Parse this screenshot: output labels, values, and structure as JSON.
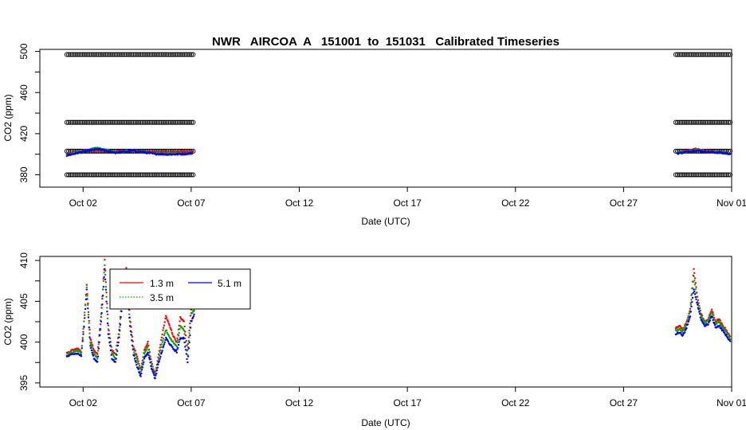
{
  "chart_data": [
    {
      "type": "scatter",
      "title": "NWR   AIRCOA  A   151001  to  151031   Calibrated Timeseries",
      "xlabel": "Date (UTC)",
      "ylabel": "CO2 (ppm)",
      "xlim": [
        "2015-09-30T00:00",
        "2015-11-01T00:00"
      ],
      "ylim": [
        368,
        502
      ],
      "x_ticks": [
        "Oct 02",
        "Oct 07",
        "Oct 12",
        "Oct 17",
        "Oct 22",
        "Oct 27",
        "Nov 01"
      ],
      "x_tick_values": [
        "2015-10-02",
        "2015-10-07",
        "2015-10-12",
        "2015-10-17",
        "2015-10-22",
        "2015-10-27",
        "2015-11-01"
      ],
      "y_ticks": [
        380,
        420,
        460,
        500
      ],
      "y_tick_labels": [
        "380",
        "420",
        "460",
        "500"
      ],
      "reference_levels": [
        380,
        403,
        431,
        497
      ],
      "reference_segments": [
        [
          "2015-10-01T06:00",
          "2015-10-07T04:00"
        ],
        [
          "2015-10-29T10:00",
          "2015-10-31T23:00"
        ]
      ],
      "series": [
        {
          "color": "#ff0000",
          "x": [
            "2015-10-01T06:00",
            "2015-10-02T00:00",
            "2015-10-02T16:00",
            "2015-10-03T12:00",
            "2015-10-04T08:00",
            "2015-10-05T06:00",
            "2015-10-06T00:00",
            "2015-10-06T16:00",
            "2015-10-07T02:00",
            "2015-10-29T12:00",
            "2015-10-30T08:00",
            "2015-10-30T20:00",
            "2015-10-31T06:00",
            "2015-10-31T23:00"
          ],
          "values": [
            399.5,
            403.5,
            404.0,
            402.5,
            403.5,
            402.0,
            401.8,
            402.5,
            403.0,
            401.5,
            404.8,
            403.2,
            402.6,
            401.0
          ]
        },
        {
          "color": "#00aa00",
          "x": [
            "2015-10-01T06:00",
            "2015-10-02T00:00",
            "2015-10-02T16:00",
            "2015-10-03T12:00",
            "2015-10-04T08:00",
            "2015-10-05T06:00",
            "2015-10-06T00:00",
            "2015-10-06T16:00",
            "2015-10-07T02:00",
            "2015-10-29T12:00",
            "2015-10-30T08:00",
            "2015-10-30T20:00",
            "2015-10-31T06:00",
            "2015-10-31T23:00"
          ],
          "values": [
            399.2,
            403.0,
            406.0,
            402.0,
            403.8,
            401.0,
            400.5,
            401.0,
            401.5,
            401.2,
            404.2,
            402.8,
            402.2,
            400.8
          ]
        },
        {
          "color": "#0000ff",
          "x": [
            "2015-10-01T06:00",
            "2015-10-02T00:00",
            "2015-10-02T16:00",
            "2015-10-03T12:00",
            "2015-10-04T08:00",
            "2015-10-05T06:00",
            "2015-10-06T00:00",
            "2015-10-06T16:00",
            "2015-10-07T02:00",
            "2015-10-29T12:00",
            "2015-10-30T08:00",
            "2015-10-30T20:00",
            "2015-10-31T06:00",
            "2015-10-31T23:00"
          ],
          "values": [
            398.8,
            402.5,
            405.0,
            401.5,
            403.5,
            400.5,
            399.8,
            400.3,
            401.0,
            400.8,
            403.8,
            402.4,
            401.8,
            400.4
          ]
        }
      ]
    },
    {
      "type": "scatter",
      "title": "",
      "xlabel": "Date (UTC)",
      "ylabel": "CO2 (ppm)",
      "xlim": [
        "2015-09-30T00:00",
        "2015-11-01T00:00"
      ],
      "ylim": [
        394.5,
        410.5
      ],
      "x_ticks": [
        "Oct 02",
        "Oct 07",
        "Oct 12",
        "Oct 17",
        "Oct 22",
        "Oct 27",
        "Nov 01"
      ],
      "x_tick_values": [
        "2015-10-02",
        "2015-10-07",
        "2015-10-12",
        "2015-10-17",
        "2015-10-22",
        "2015-10-27",
        "2015-11-01"
      ],
      "y_ticks": [
        395,
        400,
        405,
        410
      ],
      "y_tick_labels": [
        "395",
        "400",
        "405",
        "410"
      ],
      "legend": {
        "position": "top-left",
        "entries": [
          "1.3 m",
          "3.5 m",
          "5.1 m"
        ]
      },
      "series": [
        {
          "name": "1.3 m",
          "color": "#ff0000",
          "x": [
            "2015-10-01T06:00",
            "2015-10-01T12:00",
            "2015-10-01T18:00",
            "2015-10-01T22:00",
            "2015-10-02T01:00",
            "2015-10-02T04:00",
            "2015-10-02T08:00",
            "2015-10-02T12:00",
            "2015-10-02T16:00",
            "2015-10-02T20:00",
            "2015-10-03T00:00",
            "2015-10-03T04:00",
            "2015-10-03T08:00",
            "2015-10-03T12:00",
            "2015-10-03T16:00",
            "2015-10-03T20:00",
            "2015-10-04T00:00",
            "2015-10-04T04:00",
            "2015-10-04T08:00",
            "2015-10-04T12:00",
            "2015-10-04T16:00",
            "2015-10-04T20:00",
            "2015-10-05T00:00",
            "2015-10-05T04:00",
            "2015-10-05T08:00",
            "2015-10-05T12:00",
            "2015-10-05T16:00",
            "2015-10-05T20:00",
            "2015-10-06T00:00",
            "2015-10-06T04:00",
            "2015-10-06T08:00",
            "2015-10-06T12:00",
            "2015-10-06T16:00",
            "2015-10-06T20:00",
            "2015-10-07T00:00",
            "2015-10-07T04:00",
            "2015-10-29T10:00",
            "2015-10-29T14:00",
            "2015-10-29T18:00",
            "2015-10-29T22:00",
            "2015-10-30T02:00",
            "2015-10-30T06:00",
            "2015-10-30T10:00",
            "2015-10-30T14:00",
            "2015-10-30T18:00",
            "2015-10-30T22:00",
            "2015-10-31T02:00",
            "2015-10-31T06:00",
            "2015-10-31T10:00",
            "2015-10-31T14:00",
            "2015-10-31T18:00",
            "2015-10-31T23:00"
          ],
          "values": [
            398.6,
            399.0,
            399.2,
            398.8,
            402.0,
            407.0,
            400.5,
            399.0,
            398.6,
            403.0,
            410.0,
            402.0,
            399.0,
            398.5,
            401.5,
            406.0,
            409.0,
            403.0,
            399.5,
            398.2,
            396.5,
            399.0,
            400.0,
            397.5,
            396.0,
            398.5,
            401.0,
            403.2,
            402.0,
            400.8,
            400.0,
            403.0,
            402.5,
            399.0,
            404.0,
            405.0,
            401.8,
            402.0,
            401.5,
            402.5,
            404.0,
            409.0,
            405.5,
            403.5,
            402.5,
            402.8,
            404.0,
            402.5,
            402.8,
            402.0,
            401.5,
            400.5
          ]
        },
        {
          "name": "3.5 m",
          "color": "#00aa00",
          "x": [
            "2015-10-01T06:00",
            "2015-10-01T12:00",
            "2015-10-01T18:00",
            "2015-10-01T22:00",
            "2015-10-02T01:00",
            "2015-10-02T04:00",
            "2015-10-02T08:00",
            "2015-10-02T12:00",
            "2015-10-02T16:00",
            "2015-10-02T20:00",
            "2015-10-03T00:00",
            "2015-10-03T04:00",
            "2015-10-03T08:00",
            "2015-10-03T12:00",
            "2015-10-03T16:00",
            "2015-10-03T20:00",
            "2015-10-04T00:00",
            "2015-10-04T04:00",
            "2015-10-04T08:00",
            "2015-10-04T12:00",
            "2015-10-04T16:00",
            "2015-10-04T20:00",
            "2015-10-05T00:00",
            "2015-10-05T04:00",
            "2015-10-05T08:00",
            "2015-10-05T12:00",
            "2015-10-05T16:00",
            "2015-10-05T20:00",
            "2015-10-06T00:00",
            "2015-10-06T04:00",
            "2015-10-06T08:00",
            "2015-10-06T12:00",
            "2015-10-06T16:00",
            "2015-10-06T20:00",
            "2015-10-07T00:00",
            "2015-10-07T04:00",
            "2015-10-29T10:00",
            "2015-10-29T14:00",
            "2015-10-29T18:00",
            "2015-10-29T22:00",
            "2015-10-30T02:00",
            "2015-10-30T06:00",
            "2015-10-30T10:00",
            "2015-10-30T14:00",
            "2015-10-30T18:00",
            "2015-10-30T22:00",
            "2015-10-31T02:00",
            "2015-10-31T06:00",
            "2015-10-31T10:00",
            "2015-10-31T14:00",
            "2015-10-31T18:00",
            "2015-10-31T23:00"
          ],
          "values": [
            398.4,
            398.8,
            399.0,
            398.6,
            402.5,
            406.8,
            400.0,
            398.6,
            398.0,
            403.5,
            409.5,
            401.5,
            398.6,
            398.0,
            401.0,
            406.5,
            408.5,
            402.5,
            399.0,
            397.8,
            396.2,
            398.6,
            399.5,
            397.2,
            395.8,
            398.0,
            400.0,
            401.5,
            400.5,
            400.0,
            399.5,
            402.0,
            401.5,
            398.5,
            403.5,
            404.0,
            401.4,
            401.6,
            401.2,
            402.2,
            403.8,
            408.0,
            405.0,
            403.2,
            402.3,
            402.6,
            403.6,
            402.2,
            402.5,
            401.8,
            401.2,
            400.3
          ]
        },
        {
          "name": "5.1 m",
          "color": "#0000ff",
          "x": [
            "2015-10-01T06:00",
            "2015-10-01T12:00",
            "2015-10-01T18:00",
            "2015-10-01T22:00",
            "2015-10-02T01:00",
            "2015-10-02T04:00",
            "2015-10-02T08:00",
            "2015-10-02T12:00",
            "2015-10-02T16:00",
            "2015-10-02T20:00",
            "2015-10-03T00:00",
            "2015-10-03T04:00",
            "2015-10-03T08:00",
            "2015-10-03T12:00",
            "2015-10-03T16:00",
            "2015-10-03T20:00",
            "2015-10-04T00:00",
            "2015-10-04T04:00",
            "2015-10-04T08:00",
            "2015-10-04T12:00",
            "2015-10-04T16:00",
            "2015-10-04T20:00",
            "2015-10-05T00:00",
            "2015-10-05T04:00",
            "2015-10-05T08:00",
            "2015-10-05T12:00",
            "2015-10-05T16:00",
            "2015-10-05T20:00",
            "2015-10-06T00:00",
            "2015-10-06T04:00",
            "2015-10-06T08:00",
            "2015-10-06T12:00",
            "2015-10-06T16:00",
            "2015-10-06T20:00",
            "2015-10-07T00:00",
            "2015-10-07T04:00",
            "2015-10-29T10:00",
            "2015-10-29T14:00",
            "2015-10-29T18:00",
            "2015-10-29T22:00",
            "2015-10-30T02:00",
            "2015-10-30T06:00",
            "2015-10-30T10:00",
            "2015-10-30T14:00",
            "2015-10-30T18:00",
            "2015-10-30T22:00",
            "2015-10-31T02:00",
            "2015-10-31T06:00",
            "2015-10-31T10:00",
            "2015-10-31T14:00",
            "2015-10-31T18:00",
            "2015-10-31T23:00"
          ],
          "values": [
            398.2,
            398.5,
            398.6,
            398.3,
            401.8,
            406.5,
            399.5,
            398.0,
            397.5,
            402.5,
            409.0,
            401.0,
            398.0,
            397.5,
            400.5,
            405.5,
            408.0,
            402.0,
            398.5,
            397.0,
            395.8,
            398.0,
            398.8,
            396.8,
            395.5,
            397.5,
            399.0,
            400.5,
            399.8,
            399.2,
            398.8,
            400.5,
            400.5,
            397.5,
            402.5,
            403.5,
            401.0,
            401.2,
            400.8,
            401.8,
            403.2,
            406.5,
            404.5,
            402.8,
            402.0,
            402.2,
            403.2,
            401.8,
            402.0,
            401.4,
            400.8,
            400.0
          ]
        }
      ]
    }
  ]
}
